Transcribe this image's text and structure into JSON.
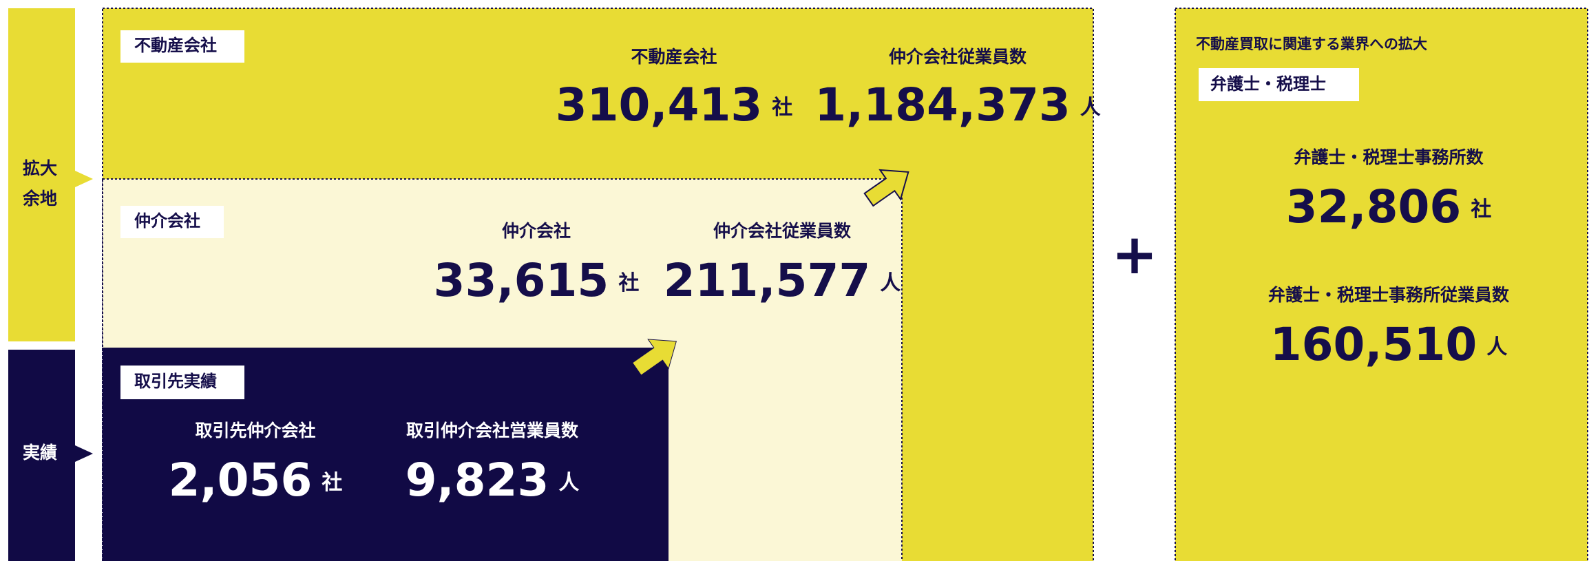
{
  "side_labels": {
    "expansion": [
      "拡大",
      "余地"
    ],
    "actual": "実績"
  },
  "real_estate": {
    "tag": "不動産会社",
    "stats": [
      {
        "label": "不動産会社",
        "value": "310,413",
        "unit": "社"
      },
      {
        "label": "仲介会社従業員数",
        "value": "1,184,373",
        "unit": "人"
      }
    ]
  },
  "brokers": {
    "tag": "仲介会社",
    "stats": [
      {
        "label": "仲介会社",
        "value": "33,615",
        "unit": "社"
      },
      {
        "label": "仲介会社従業員数",
        "value": "211,577",
        "unit": "人"
      }
    ]
  },
  "clients": {
    "tag": "取引先実績",
    "stats": [
      {
        "label": "取引先仲介会社",
        "value": "2,056",
        "unit": "社"
      },
      {
        "label": "取引仲介会社営業員数",
        "value": "9,823",
        "unit": "人"
      }
    ]
  },
  "plus": "+",
  "expansion": {
    "heading": "不動産買取に関連する業界への拡大",
    "tag": "弁護士・税理士",
    "stats": [
      {
        "label": "弁護士・税理士事務所数",
        "value": "32,806",
        "unit": "社"
      },
      {
        "label": "弁護士・税理士事務所従業員数",
        "value": "160,510",
        "unit": "人"
      }
    ]
  }
}
